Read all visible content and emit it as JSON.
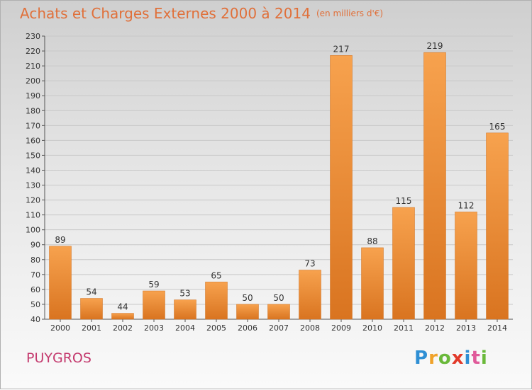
{
  "header": {
    "title": "Achats et Charges Externes 2000 à 2014",
    "subtitle": "(en milliers d'€)"
  },
  "footer": {
    "commune": "PUYGROS",
    "logo_letters": [
      "P",
      "r",
      "o",
      "x",
      "i",
      "t",
      "i"
    ],
    "logo_colors": [
      "#2f8fd4",
      "#f0a22a",
      "#6ab93a",
      "#e23a2a",
      "#2f8fd4",
      "#e05a9a",
      "#6ab93a"
    ]
  },
  "chart_data": {
    "type": "bar",
    "title": "Achats et Charges Externes 2000 à 2014",
    "subtitle": "(en milliers d'€)",
    "categories": [
      "2000",
      "2001",
      "2002",
      "2003",
      "2004",
      "2005",
      "2006",
      "2007",
      "2008",
      "2009",
      "2010",
      "2011",
      "2012",
      "2013",
      "2014"
    ],
    "values": [
      89,
      54,
      44,
      59,
      53,
      65,
      50,
      50,
      73,
      217,
      88,
      115,
      219,
      112,
      165
    ],
    "ylim": [
      40,
      230
    ],
    "ytick_step": 10,
    "grid": true,
    "bar_color": "#f0953c",
    "bar_color_dark": "#d46e1e"
  }
}
